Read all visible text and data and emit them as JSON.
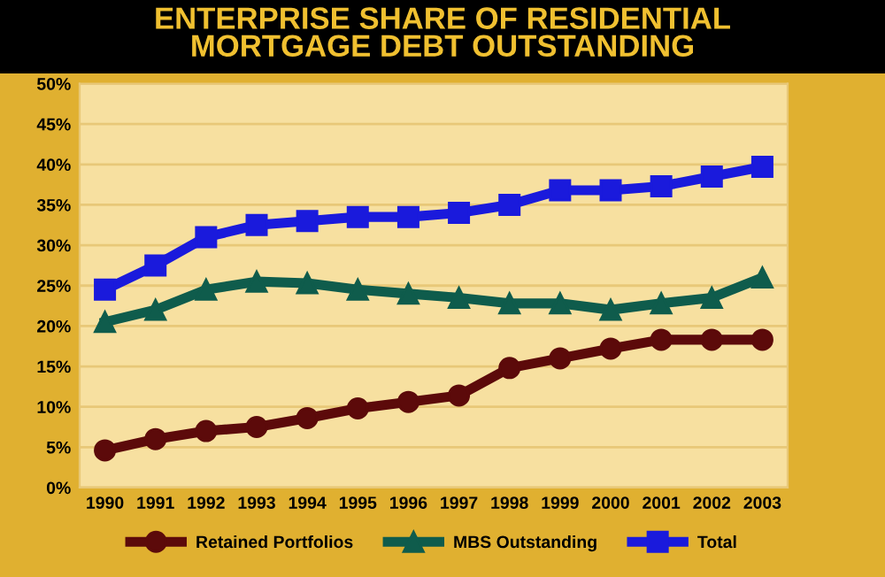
{
  "chart_data": {
    "type": "line",
    "title": "ENTERPRISE SHARE OF RESIDENTIAL\nMORTGAGE DEBT OUTSTANDING",
    "categories": [
      "1990",
      "1991",
      "1992",
      "1993",
      "1994",
      "1995",
      "1996",
      "1997",
      "1998",
      "1999",
      "2000",
      "2001",
      "2002",
      "2003"
    ],
    "series": [
      {
        "name": "Retained Portfolios",
        "color": "#5c0a0a",
        "marker": "circle",
        "values": [
          4.6,
          6,
          7,
          7.5,
          8.6,
          9.8,
          10.6,
          11.4,
          14.8,
          16,
          17.2,
          18.3,
          18.3,
          18.3
        ]
      },
      {
        "name": "MBS Outstanding",
        "color": "#0f5c4c",
        "marker": "triangle",
        "values": [
          20.5,
          22,
          24.5,
          25.5,
          25.3,
          24.5,
          24,
          23.5,
          22.8,
          22.8,
          22,
          22.8,
          23.5,
          26
        ]
      },
      {
        "name": "Total",
        "color": "#1a1adc",
        "marker": "square",
        "values": [
          24.5,
          27.5,
          31,
          32.5,
          33,
          33.5,
          33.5,
          34,
          35,
          36.8,
          36.8,
          37.3,
          38.5,
          39.7
        ]
      }
    ],
    "ylim": [
      0,
      50
    ],
    "yticks": [
      {
        "value": 0,
        "label": "0%"
      },
      {
        "value": 5,
        "label": "5%"
      },
      {
        "value": 10,
        "label": "10%"
      },
      {
        "value": 15,
        "label": "15%"
      },
      {
        "value": 20,
        "label": "20%"
      },
      {
        "value": 25,
        "label": "25%"
      },
      {
        "value": 30,
        "label": "30%"
      },
      {
        "value": 35,
        "label": "35%"
      },
      {
        "value": 40,
        "label": "40%"
      },
      {
        "value": 45,
        "label": "45%"
      },
      {
        "value": 50,
        "label": "50%"
      }
    ],
    "grid": "y",
    "legend": "bottom",
    "line_style": "solid"
  }
}
